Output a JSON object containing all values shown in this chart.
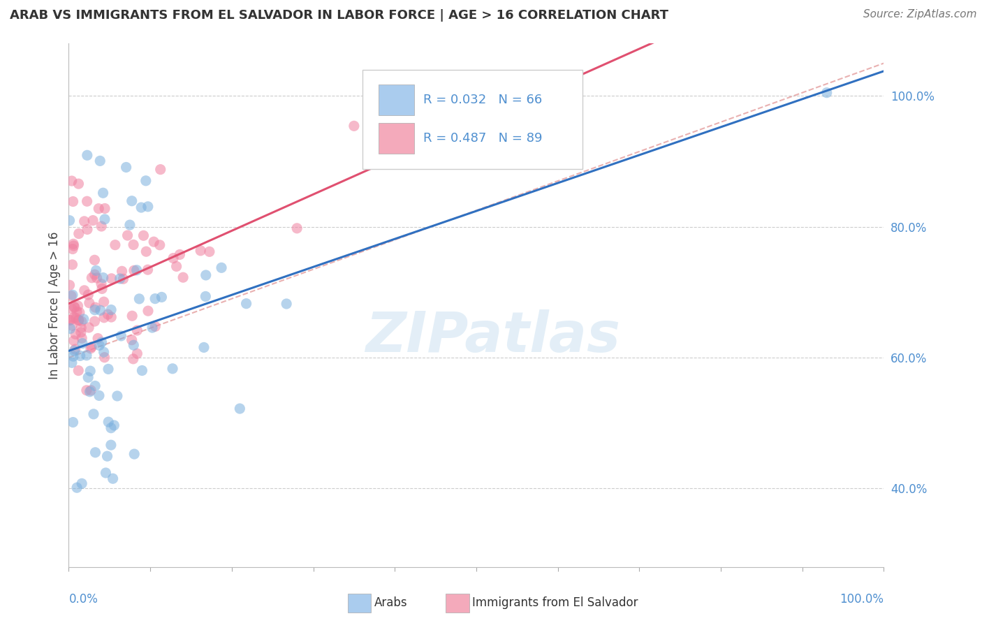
{
  "title": "ARAB VS IMMIGRANTS FROM EL SALVADOR IN LABOR FORCE | AGE > 16 CORRELATION CHART",
  "source": "Source: ZipAtlas.com",
  "ylabel": "In Labor Force | Age > 16",
  "legend_arab": {
    "R": "0.032",
    "N": "66",
    "color": "#aaccee"
  },
  "legend_salvador": {
    "R": "0.487",
    "N": "89",
    "color": "#f4aabb"
  },
  "arab_color": "#7ab0de",
  "salvador_color": "#f080a0",
  "trendline_arab_color": "#3070c0",
  "trendline_salvador_color": "#e05070",
  "trendline_salvador_dashed_color": "#e08090",
  "watermark": "ZIPatlas",
  "background_color": "#ffffff",
  "right_tick_color": "#5090d0",
  "ytick_labels": [
    "40.0%",
    "60.0%",
    "80.0%",
    "100.0%"
  ],
  "ytick_values": [
    0.4,
    0.6,
    0.8,
    1.0
  ],
  "ylim": [
    0.28,
    1.08
  ],
  "xlim": [
    0.0,
    1.0
  ]
}
